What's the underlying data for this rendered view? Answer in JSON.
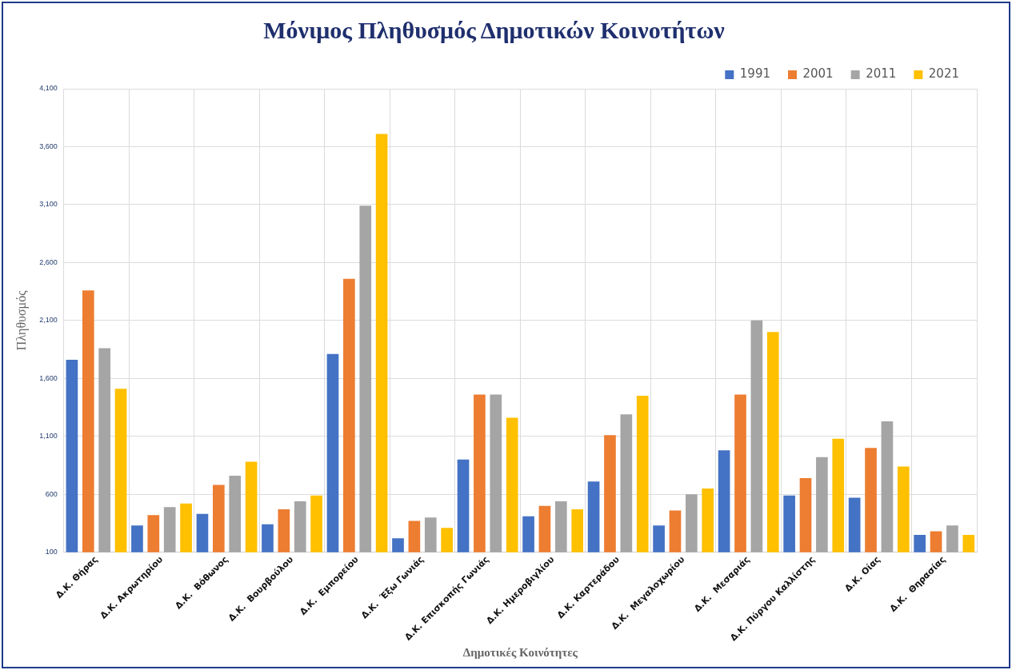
{
  "chart_data": {
    "type": "bar",
    "title": "Μόνιμος Πληθυσμός Δημοτικών Κοινοτήτων",
    "xlabel": "Δημοτικές Κοινότητες",
    "ylabel": "Πληθυσμός",
    "categories": [
      "Δ.Κ. Θήρας",
      "Δ.Κ. Ακρωτηρίου",
      "Δ.Κ.  Βόθωνος",
      "Δ.Κ.  Βουρβούλου",
      "Δ.Κ.  Εμπορείου",
      "Δ.Κ.  Έξω Γωνιάς",
      "Δ.Κ. Επισκοπής Γωνιάς",
      "Δ.Κ. Ημεροβιγλίου",
      "Δ.Κ. Καρτεράδου",
      "Δ.Κ.  Μεγαλοχωρίου",
      "Δ.Κ.  Μεσαριάς",
      "Δ.Κ. Πύργου Καλλίστης",
      "Δ.Κ. Οίας",
      "Δ.Κ.  Θηρασίας"
    ],
    "series": [
      {
        "name": "1991",
        "color": "#4472c4",
        "values": [
          1760,
          330,
          430,
          340,
          1810,
          220,
          900,
          410,
          710,
          330,
          980,
          590,
          570,
          250
        ]
      },
      {
        "name": "2001",
        "color": "#ed7d31",
        "values": [
          2360,
          420,
          680,
          470,
          2460,
          370,
          1460,
          500,
          1110,
          460,
          1460,
          740,
          1000,
          280
        ]
      },
      {
        "name": "2011",
        "color": "#a5a5a5",
        "values": [
          1860,
          490,
          760,
          540,
          3090,
          400,
          1460,
          540,
          1290,
          600,
          2100,
          920,
          1230,
          330
        ]
      },
      {
        "name": "2021",
        "color": "#ffc000",
        "values": [
          1510,
          520,
          880,
          590,
          3710,
          310,
          1260,
          470,
          1450,
          650,
          2000,
          1080,
          840,
          250
        ]
      }
    ],
    "ylim": [
      100,
      4100
    ],
    "yticks": [
      {
        "value": 100,
        "label": "100"
      },
      {
        "value": 600,
        "label": "600"
      },
      {
        "value": 1100,
        "label": "1,100"
      },
      {
        "value": 1600,
        "label": "1,600"
      },
      {
        "value": 2100,
        "label": "2,100"
      },
      {
        "value": 2600,
        "label": "2,600"
      },
      {
        "value": 3100,
        "label": "3,100"
      },
      {
        "value": 3600,
        "label": "3,600"
      },
      {
        "value": 4100,
        "label": "4,100"
      }
    ],
    "grid": true,
    "legend": "top right"
  }
}
